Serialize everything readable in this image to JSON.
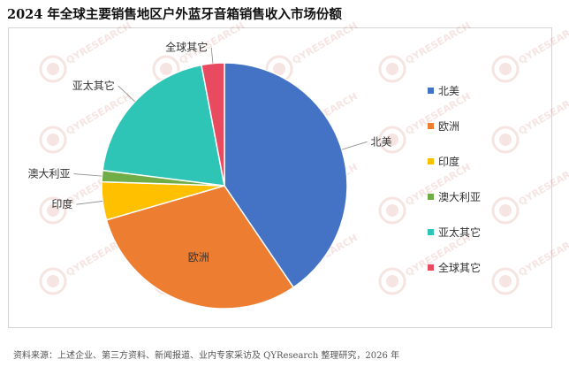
{
  "title": "2024 年全球主要销售地区户外蓝牙音箱销售收入市场份额",
  "source_note": "资料来源：上述企业、第三方资料、新闻报道、业内专家采访及 QYResearch 整理研究，2026 年",
  "watermark_text": "QYRESEARCH",
  "chart_data": {
    "type": "pie",
    "title": "2024 年全球主要销售地区户外蓝牙音箱销售收入市场份额",
    "categories": [
      "北美",
      "欧洲",
      "印度",
      "澳大利亚",
      "亚太其它",
      "全球其它"
    ],
    "values": [
      40.5,
      30.0,
      5.0,
      1.5,
      20.0,
      3.0
    ],
    "unit": "%",
    "colors": [
      "#4472C4",
      "#ED7D31",
      "#FFC000",
      "#70AD47",
      "#2EC4B6",
      "#E84A5F"
    ],
    "legend_position": "right",
    "start_angle": "12 o'clock",
    "direction": "clockwise"
  }
}
